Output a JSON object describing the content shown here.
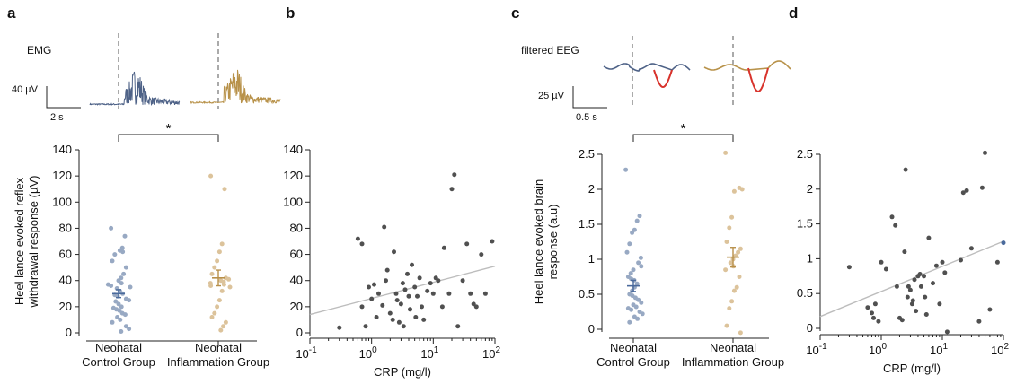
{
  "panels": {
    "a": "a",
    "b": "b",
    "c": "c",
    "d": "d"
  },
  "colors": {
    "control": "#98a9c3",
    "inflammation": "#dcc39b",
    "control_mean": "#4a6a9c",
    "inflammation_mean": "#b8904a",
    "control_trace": "#4e6287",
    "inflammation_trace": "#b8924a",
    "eeg_highlight": "#d8332c",
    "scatter": "#505050",
    "scatter_highlight": "#4a6a9c",
    "fit_line": "#bdbdbd"
  },
  "traces": {
    "emg": {
      "label": "EMG",
      "amp_scale": "40 µV",
      "time_scale": "2 s"
    },
    "eeg": {
      "label": "filtered EEG",
      "amp_scale": "25 µV",
      "time_scale": "0.5 s"
    }
  },
  "significance": "*",
  "chart_data": [
    {
      "id": "a",
      "type": "scatter",
      "title": "",
      "xlabel": "",
      "ylabel": "Heel lance evoked reflex withdrawal response (µV)",
      "ylabel_lines": [
        "Heel lance evoked reflex",
        "withdrawal response (µV)"
      ],
      "ylim": [
        0,
        140
      ],
      "yticks": [
        "0",
        "20",
        "40",
        "60",
        "80",
        "100",
        "120",
        "140"
      ],
      "categories": [
        "Neonatal Control Group",
        "Neonatal Inflammation Group"
      ],
      "category_lines": [
        [
          "Neonatal",
          "Control Group"
        ],
        [
          "Neonatal",
          "Inflammation Group"
        ]
      ],
      "series": [
        {
          "values": [
            80,
            74,
            65,
            63,
            62,
            60,
            55,
            50,
            45,
            42,
            40,
            38,
            37,
            36,
            35,
            34,
            32,
            30,
            29,
            28,
            26,
            25,
            24,
            22,
            20,
            19,
            18,
            17,
            15,
            14,
            12,
            10,
            8,
            5,
            3,
            1
          ],
          "mean": 30,
          "sem": 3
        },
        {
          "values": [
            120,
            110,
            68,
            62,
            55,
            50,
            45,
            42,
            41,
            40,
            39,
            38,
            37,
            36,
            35,
            32,
            25,
            20,
            15,
            12,
            8,
            5,
            2
          ],
          "mean": 42,
          "sem": 6
        }
      ]
    },
    {
      "id": "b",
      "type": "scatter",
      "title": "",
      "xlabel": "CRP (mg/l)",
      "ylabel": "",
      "xscale": "log",
      "xlim": [
        0.1,
        100
      ],
      "ylim": [
        0,
        140
      ],
      "yticks": [
        "0",
        "20",
        "40",
        "60",
        "80",
        "100",
        "120",
        "140"
      ],
      "xticks": [
        {
          "base": "10",
          "exp": "-1"
        },
        {
          "base": "10",
          "exp": "0"
        },
        {
          "base": "10",
          "exp": "1"
        },
        {
          "base": "10",
          "exp": "2"
        }
      ],
      "x": [
        0.3,
        0.6,
        0.7,
        0.7,
        0.8,
        0.9,
        1.0,
        1.1,
        1.2,
        1.3,
        1.5,
        1.6,
        1.7,
        1.8,
        2.0,
        2.2,
        2.3,
        2.5,
        2.6,
        2.8,
        3.0,
        3.2,
        3.3,
        3.5,
        3.8,
        4.0,
        4.2,
        4.5,
        5.0,
        5.2,
        5.5,
        6.0,
        6.5,
        7.0,
        8.0,
        9.0,
        10,
        11,
        12,
        14,
        15,
        18,
        20,
        22,
        25,
        30,
        35,
        40,
        45,
        50,
        60,
        70,
        90
      ],
      "y": [
        4,
        72,
        68,
        20,
        5,
        35,
        26,
        37,
        12,
        30,
        21,
        81,
        40,
        48,
        15,
        10,
        62,
        30,
        25,
        8,
        22,
        38,
        5,
        33,
        45,
        28,
        18,
        52,
        35,
        12,
        28,
        42,
        20,
        10,
        32,
        38,
        30,
        42,
        40,
        20,
        65,
        30,
        110,
        121,
        5,
        40,
        68,
        30,
        22,
        20,
        60,
        30,
        70
      ],
      "fit": {
        "x": [
          0.1,
          100
        ],
        "y": [
          14,
          51
        ]
      }
    },
    {
      "id": "c",
      "type": "scatter",
      "title": "",
      "xlabel": "",
      "ylabel": "Heel lance evoked brain response (a.u)",
      "ylabel_lines": [
        "Heel lance evoked brain",
        "response (a.u)"
      ],
      "ylim": [
        0,
        2.5
      ],
      "yticks": [
        "0",
        "0.5",
        "1",
        "1.5",
        "2",
        "2.5"
      ],
      "categories": [
        "Neonatal Control Group",
        "Neonatal Inflammation Group"
      ],
      "category_lines": [
        [
          "Neonatal",
          "Control Group"
        ],
        [
          "Neonatal",
          "Inflammation Group"
        ]
      ],
      "series": [
        {
          "values": [
            2.28,
            1.62,
            1.55,
            1.42,
            1.38,
            1.22,
            1.1,
            1.02,
            0.95,
            0.9,
            0.85,
            0.8,
            0.75,
            0.72,
            0.7,
            0.65,
            0.6,
            0.55,
            0.5,
            0.48,
            0.45,
            0.42,
            0.38,
            0.35,
            0.32,
            0.3,
            0.28,
            0.25,
            0.22,
            0.18,
            0.15,
            0.1
          ],
          "mean": 0.62,
          "sem": 0.08
        },
        {
          "values": [
            2.52,
            2.02,
            2.0,
            1.97,
            1.6,
            1.45,
            1.25,
            1.15,
            1.1,
            1.05,
            1.0,
            0.95,
            0.9,
            0.85,
            0.75,
            0.6,
            0.55,
            0.4,
            0.3,
            0.05,
            -0.05
          ],
          "mean": 1.03,
          "sem": 0.14
        }
      ]
    },
    {
      "id": "d",
      "type": "scatter",
      "title": "",
      "xlabel": "CRP (mg/l)",
      "ylabel": "",
      "xscale": "log",
      "xlim": [
        0.1,
        100
      ],
      "ylim": [
        0,
        2.5
      ],
      "yticks": [
        "0",
        "0.5",
        "1",
        "1.5",
        "2",
        "2.5"
      ],
      "xticks": [
        {
          "base": "10",
          "exp": "-1"
        },
        {
          "base": "10",
          "exp": "0"
        },
        {
          "base": "10",
          "exp": "1"
        },
        {
          "base": "10",
          "exp": "2"
        }
      ],
      "x": [
        0.3,
        0.6,
        0.7,
        0.75,
        0.8,
        0.9,
        1.0,
        1.2,
        1.5,
        1.7,
        1.8,
        2.0,
        2.2,
        2.4,
        2.5,
        2.7,
        2.8,
        3.0,
        3.2,
        3.3,
        3.5,
        3.7,
        4.0,
        4.3,
        4.5,
        5.0,
        5.2,
        5.5,
        6.0,
        7.0,
        8.0,
        9.0,
        10,
        11,
        12,
        20,
        22,
        25,
        30,
        40,
        45,
        50,
        60,
        80,
        100
      ],
      "y": [
        0.88,
        0.3,
        0.22,
        0.15,
        0.35,
        0.1,
        0.95,
        0.85,
        1.6,
        1.48,
        0.6,
        0.15,
        0.12,
        1.1,
        2.28,
        0.45,
        0.6,
        0.55,
        0.35,
        0.4,
        0.7,
        0.25,
        0.75,
        0.78,
        0.6,
        0.75,
        0.45,
        0.2,
        1.3,
        0.65,
        0.9,
        0.35,
        0.95,
        0.8,
        -0.05,
        0.98,
        1.95,
        1.98,
        1.15,
        0.1,
        2.02,
        2.52,
        0.27,
        0.95,
        1.23
      ],
      "highlight_index": 44,
      "fit": {
        "x": [
          0.1,
          100
        ],
        "y": [
          0.17,
          1.25
        ]
      }
    }
  ]
}
